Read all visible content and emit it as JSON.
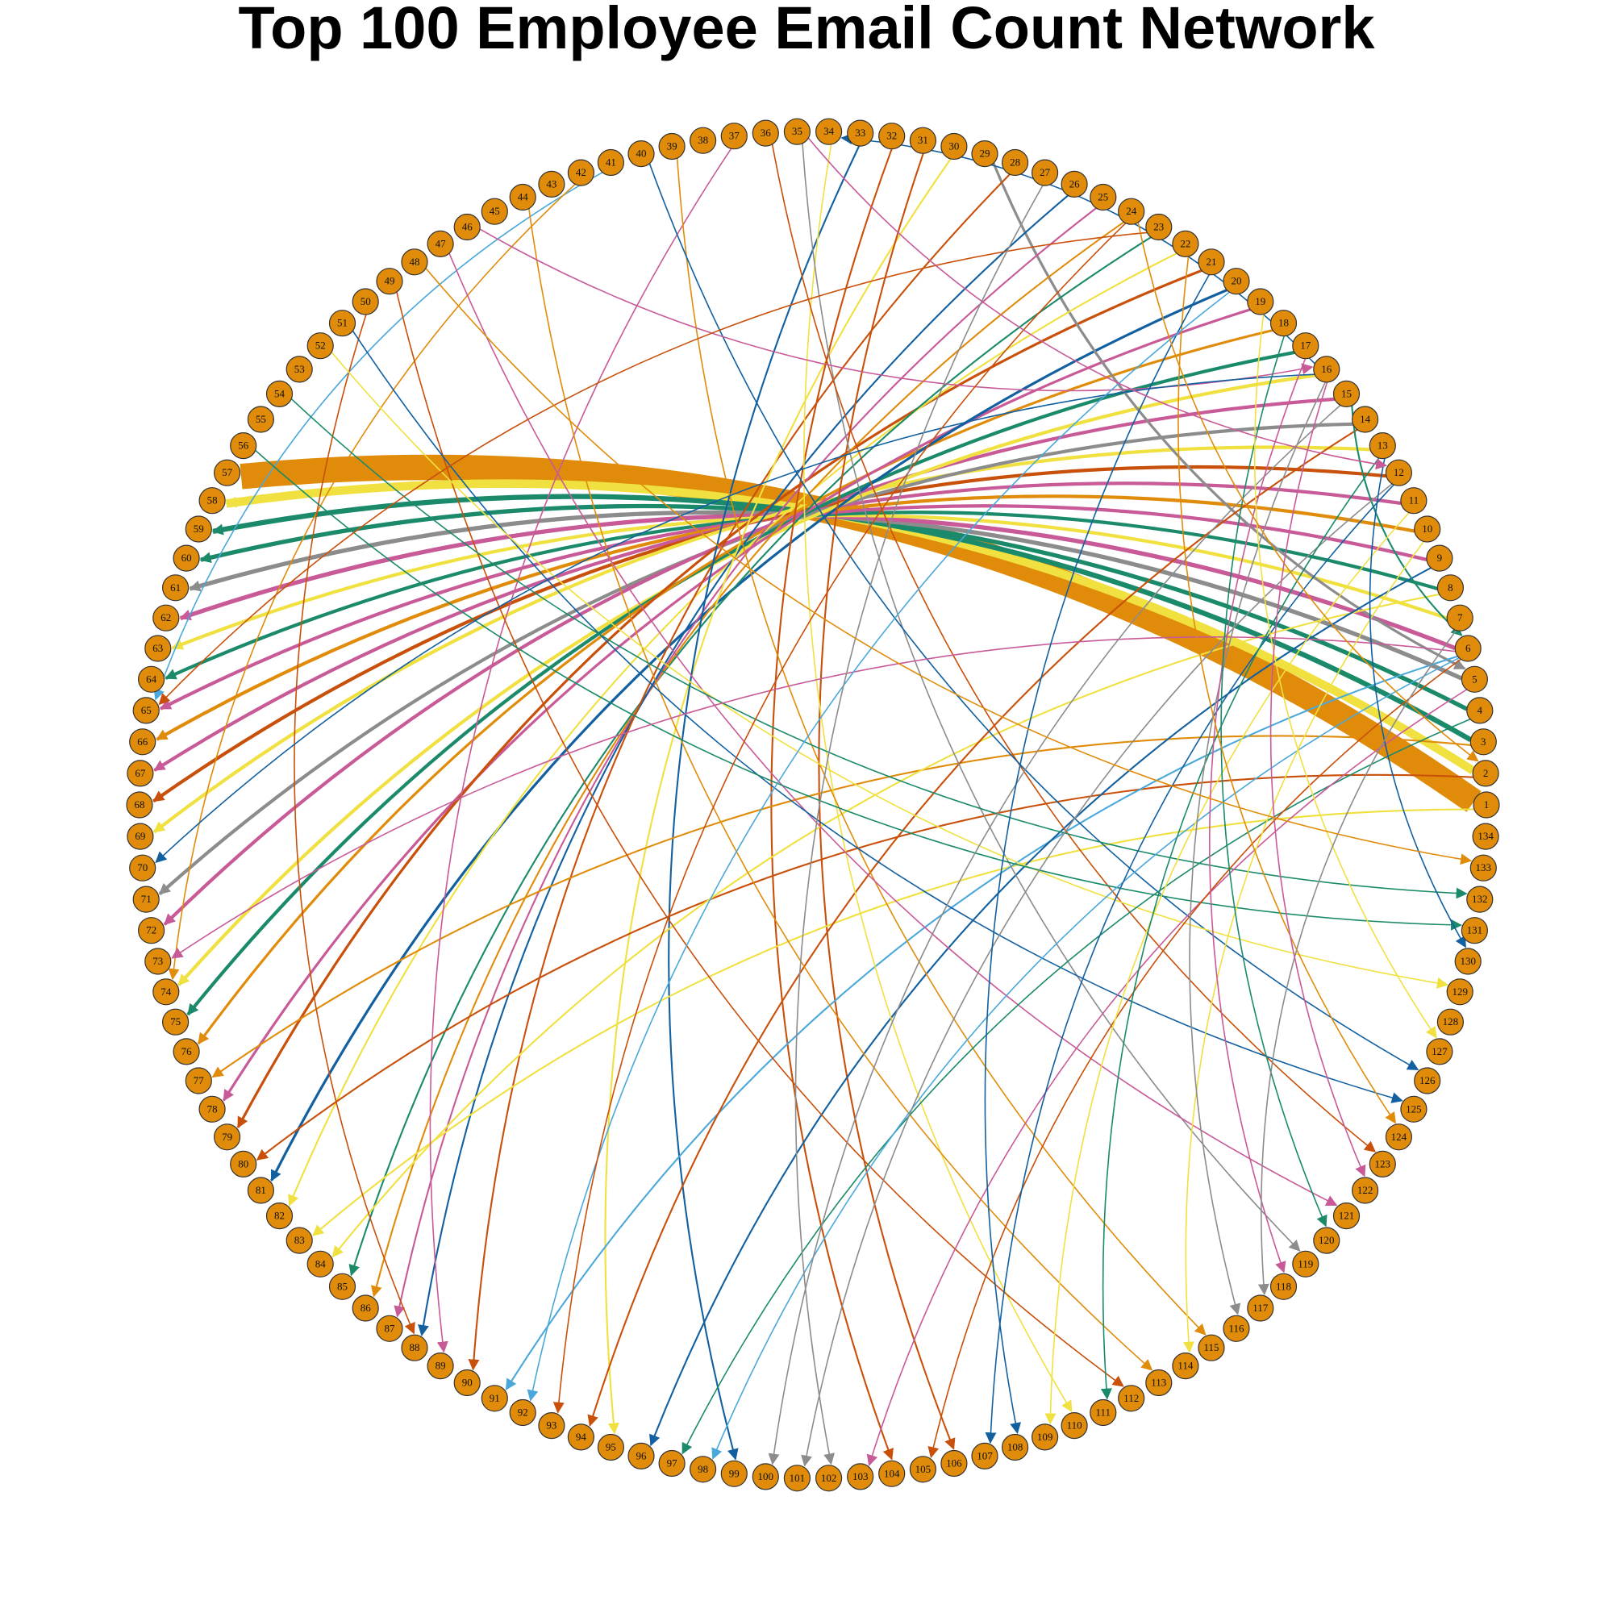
{
  "title": "Top 100 Employee Email Count Network",
  "colors": {
    "node_fill": "#E08C0A",
    "node_stroke": "#333333",
    "palette": [
      "#E08C0A",
      "#F0E040",
      "#1B8A6B",
      "#8C8C8C",
      "#C85A98",
      "#C8500A",
      "#1260A0",
      "#4AA8DA"
    ]
  },
  "chart_data": {
    "type": "network",
    "layout": "circle",
    "node_ids": [
      1,
      2,
      3,
      4,
      5,
      6,
      7,
      8,
      9,
      10,
      11,
      12,
      13,
      14,
      15,
      16,
      17,
      18,
      19,
      20,
      21,
      22,
      23,
      24,
      25,
      26,
      27,
      28,
      29,
      30,
      31,
      32,
      33,
      34,
      35,
      36,
      37,
      38,
      39,
      40,
      41,
      42,
      43,
      44,
      45,
      46,
      47,
      48,
      49,
      50,
      51,
      52,
      53,
      54,
      55,
      56,
      57,
      58,
      59,
      60,
      61,
      62,
      63,
      64,
      65,
      66,
      67,
      68,
      69,
      70,
      71,
      72,
      73,
      74,
      75,
      76,
      77,
      78,
      79,
      80,
      81,
      82,
      83,
      84,
      85,
      86,
      87,
      88,
      89,
      90,
      91,
      92,
      93,
      94,
      95,
      96,
      97,
      98,
      99,
      100,
      101,
      102,
      103,
      104,
      105,
      106,
      107,
      108,
      109,
      110,
      111,
      112,
      113,
      114,
      115,
      116,
      117,
      118,
      119,
      120,
      121,
      122,
      123,
      124,
      125,
      126,
      127,
      128,
      129,
      130,
      131,
      132,
      133,
      134
    ],
    "edges": [
      {
        "source": 1,
        "target": 57,
        "weight": 30,
        "color": "#E08C0A"
      },
      {
        "source": 2,
        "target": 58,
        "weight": 10,
        "color": "#F0E040"
      },
      {
        "source": 3,
        "target": 59,
        "weight": 6,
        "color": "#1B8A6B"
      },
      {
        "source": 4,
        "target": 60,
        "weight": 5,
        "color": "#1B8A6B"
      },
      {
        "source": 5,
        "target": 61,
        "weight": 5,
        "color": "#8C8C8C"
      },
      {
        "source": 6,
        "target": 62,
        "weight": 5,
        "color": "#C85A98"
      },
      {
        "source": 7,
        "target": 63,
        "weight": 4,
        "color": "#F0E040"
      },
      {
        "source": 8,
        "target": 64,
        "weight": 4,
        "color": "#1B8A6B"
      },
      {
        "source": 9,
        "target": 65,
        "weight": 4,
        "color": "#C85A98"
      },
      {
        "source": 10,
        "target": 66,
        "weight": 4,
        "color": "#E08C0A"
      },
      {
        "source": 11,
        "target": 67,
        "weight": 4,
        "color": "#C85A98"
      },
      {
        "source": 12,
        "target": 68,
        "weight": 4,
        "color": "#C8500A"
      },
      {
        "source": 13,
        "target": 69,
        "weight": 4,
        "color": "#F0E040"
      },
      {
        "source": 14,
        "target": 71,
        "weight": 4,
        "color": "#8C8C8C"
      },
      {
        "source": 15,
        "target": 72,
        "weight": 4,
        "color": "#C85A98"
      },
      {
        "source": 16,
        "target": 74,
        "weight": 4,
        "color": "#F0E040"
      },
      {
        "source": 17,
        "target": 75,
        "weight": 4,
        "color": "#1B8A6B"
      },
      {
        "source": 18,
        "target": 76,
        "weight": 3,
        "color": "#E08C0A"
      },
      {
        "source": 19,
        "target": 78,
        "weight": 3,
        "color": "#C85A98"
      },
      {
        "source": 20,
        "target": 81,
        "weight": 3,
        "color": "#1260A0"
      },
      {
        "source": 21,
        "target": 79,
        "weight": 3,
        "color": "#C8500A"
      },
      {
        "source": 22,
        "target": 82,
        "weight": 2,
        "color": "#F0E040"
      },
      {
        "source": 23,
        "target": 85,
        "weight": 2,
        "color": "#1B8A6B"
      },
      {
        "source": 24,
        "target": 86,
        "weight": 2,
        "color": "#E08C0A"
      },
      {
        "source": 25,
        "target": 87,
        "weight": 2,
        "color": "#C85A98"
      },
      {
        "source": 26,
        "target": 88,
        "weight": 2,
        "color": "#1260A0"
      },
      {
        "source": 28,
        "target": 90,
        "weight": 2,
        "color": "#C8500A"
      },
      {
        "source": 29,
        "target": 5,
        "weight": 3,
        "color": "#8C8C8C"
      },
      {
        "source": 30,
        "target": 95,
        "weight": 2,
        "color": "#F0E040"
      },
      {
        "source": 31,
        "target": 106,
        "weight": 2,
        "color": "#C8500A"
      },
      {
        "source": 32,
        "target": 104,
        "weight": 2,
        "color": "#C8500A"
      },
      {
        "source": 33,
        "target": 99,
        "weight": 2,
        "color": "#1260A0"
      },
      {
        "source": 34,
        "target": 110,
        "weight": 1,
        "color": "#F0E040"
      },
      {
        "source": 35,
        "target": 119,
        "weight": 1,
        "color": "#8C8C8C"
      },
      {
        "source": 36,
        "target": 123,
        "weight": 1,
        "color": "#C8500A"
      },
      {
        "source": 37,
        "target": 89,
        "weight": 1,
        "color": "#C85A98"
      },
      {
        "source": 39,
        "target": 115,
        "weight": 1,
        "color": "#E08C0A"
      },
      {
        "source": 40,
        "target": 126,
        "weight": 1,
        "color": "#1260A0"
      },
      {
        "source": 41,
        "target": 65,
        "weight": 1,
        "color": "#4AA8DA"
      },
      {
        "source": 42,
        "target": 74,
        "weight": 1,
        "color": "#E08C0A"
      },
      {
        "source": 44,
        "target": 113,
        "weight": 1,
        "color": "#E08C0A"
      },
      {
        "source": 46,
        "target": 16,
        "weight": 1,
        "color": "#C85A98"
      },
      {
        "source": 47,
        "target": 121,
        "weight": 1,
        "color": "#C85A98"
      },
      {
        "source": 49,
        "target": 112,
        "weight": 1,
        "color": "#C8500A"
      },
      {
        "source": 50,
        "target": 88,
        "weight": 1,
        "color": "#C8500A"
      },
      {
        "source": 51,
        "target": 125,
        "weight": 1,
        "color": "#1260A0"
      },
      {
        "source": 52,
        "target": 129,
        "weight": 1,
        "color": "#F0E040"
      },
      {
        "source": 54,
        "target": 132,
        "weight": 1,
        "color": "#1B8A6B"
      },
      {
        "source": 56,
        "target": 131,
        "weight": 1,
        "color": "#1B8A6B"
      },
      {
        "source": 16,
        "target": 70,
        "weight": 1,
        "color": "#1260A0"
      },
      {
        "source": 16,
        "target": 34,
        "weight": 1,
        "color": "#1260A0"
      },
      {
        "source": 23,
        "target": 65,
        "weight": 1,
        "color": "#C8500A"
      },
      {
        "source": 6,
        "target": 73,
        "weight": 1,
        "color": "#C85A98"
      },
      {
        "source": 2,
        "target": 80,
        "weight": 2,
        "color": "#C8500A"
      },
      {
        "source": 1,
        "target": 83,
        "weight": 2,
        "color": "#F0E040"
      },
      {
        "source": 3,
        "target": 77,
        "weight": 2,
        "color": "#E08C0A"
      },
      {
        "source": 8,
        "target": 84,
        "weight": 2,
        "color": "#F0E040"
      },
      {
        "source": 6,
        "target": 91,
        "weight": 2,
        "color": "#4AA8DA"
      },
      {
        "source": 14,
        "target": 94,
        "weight": 2,
        "color": "#C8500A"
      },
      {
        "source": 9,
        "target": 96,
        "weight": 2,
        "color": "#1260A0"
      },
      {
        "source": 4,
        "target": 97,
        "weight": 1,
        "color": "#1B8A6B"
      },
      {
        "source": 6,
        "target": 98,
        "weight": 1,
        "color": "#4AA8DA"
      },
      {
        "source": 15,
        "target": 100,
        "weight": 1,
        "color": "#8C8C8C"
      },
      {
        "source": 12,
        "target": 101,
        "weight": 1,
        "color": "#8C8C8C"
      },
      {
        "source": 5,
        "target": 103,
        "weight": 1,
        "color": "#C85A98"
      },
      {
        "source": 6,
        "target": 105,
        "weight": 1,
        "color": "#C8500A"
      },
      {
        "source": 12,
        "target": 107,
        "weight": 1,
        "color": "#1260A0"
      },
      {
        "source": 11,
        "target": 109,
        "weight": 1,
        "color": "#F0E040"
      },
      {
        "source": 13,
        "target": 111,
        "weight": 1,
        "color": "#1B8A6B"
      },
      {
        "source": 10,
        "target": 114,
        "weight": 1,
        "color": "#F0E040"
      },
      {
        "source": 16,
        "target": 116,
        "weight": 1,
        "color": "#8C8C8C"
      },
      {
        "source": 17,
        "target": 118,
        "weight": 1,
        "color": "#C85A98"
      },
      {
        "source": 18,
        "target": 120,
        "weight": 1,
        "color": "#1B8A6B"
      },
      {
        "source": 22,
        "target": 124,
        "weight": 1,
        "color": "#E08C0A"
      },
      {
        "source": 19,
        "target": 127,
        "weight": 1,
        "color": "#F0E040"
      },
      {
        "source": 21,
        "target": 108,
        "weight": 1,
        "color": "#1260A0"
      },
      {
        "source": 20,
        "target": 92,
        "weight": 1,
        "color": "#4AA8DA"
      },
      {
        "source": 24,
        "target": 93,
        "weight": 1,
        "color": "#C8500A"
      },
      {
        "source": 27,
        "target": 102,
        "weight": 1,
        "color": "#8C8C8C"
      },
      {
        "source": 15,
        "target": 6,
        "weight": 2,
        "color": "#1B8A6B"
      },
      {
        "source": 24,
        "target": 2,
        "weight": 1,
        "color": "#E08C0A"
      },
      {
        "source": 13,
        "target": 130,
        "weight": 1,
        "color": "#1260A0"
      },
      {
        "source": 7,
        "target": 117,
        "weight": 1,
        "color": "#8C8C8C"
      },
      {
        "source": 16,
        "target": 122,
        "weight": 1,
        "color": "#C85A98"
      },
      {
        "source": 35,
        "target": 12,
        "weight": 1,
        "color": "#C85A98"
      },
      {
        "source": 48,
        "target": 133,
        "weight": 1,
        "color": "#E08C0A"
      }
    ]
  }
}
